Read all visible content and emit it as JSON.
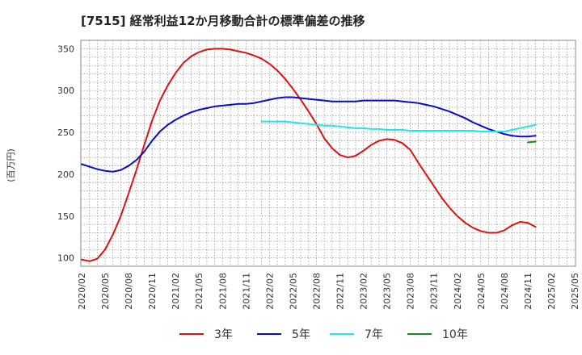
{
  "chart_data": {
    "type": "line",
    "title": "[7515]  経常利益12か月移動合計の標準偏差の推移",
    "ylabel": "(百万円)",
    "xlabel": "",
    "ylim": [
      90,
      360
    ],
    "yticks": [
      100,
      150,
      200,
      250,
      300,
      350
    ],
    "x_tick_labels": [
      "2020/02",
      "2020/05",
      "2020/08",
      "2020/11",
      "2021/02",
      "2021/05",
      "2021/08",
      "2021/11",
      "2022/02",
      "2022/05",
      "2022/08",
      "2022/11",
      "2023/02",
      "2023/05",
      "2023/08",
      "2023/11",
      "2024/02",
      "2024/05",
      "2024/08",
      "2024/11",
      "2025/02",
      "2025/05"
    ],
    "grid": true,
    "legend_position": "bottom",
    "series": [
      {
        "name": "3年",
        "color": "#dd1111",
        "points": [
          [
            "2020/02",
            98
          ],
          [
            "2020/03",
            96
          ],
          [
            "2020/04",
            99
          ],
          [
            "2020/05",
            110
          ],
          [
            "2020/06",
            128
          ],
          [
            "2020/07",
            150
          ],
          [
            "2020/08",
            177
          ],
          [
            "2020/09",
            205
          ],
          [
            "2020/10",
            235
          ],
          [
            "2020/11",
            264
          ],
          [
            "2020/12",
            288
          ],
          [
            "2021/01",
            306
          ],
          [
            "2021/02",
            321
          ],
          [
            "2021/03",
            333
          ],
          [
            "2021/04",
            341
          ],
          [
            "2021/05",
            346
          ],
          [
            "2021/06",
            349
          ],
          [
            "2021/07",
            350
          ],
          [
            "2021/08",
            350
          ],
          [
            "2021/09",
            349
          ],
          [
            "2021/10",
            347
          ],
          [
            "2021/11",
            345
          ],
          [
            "2021/12",
            342
          ],
          [
            "2022/01",
            338
          ],
          [
            "2022/02",
            332
          ],
          [
            "2022/03",
            324
          ],
          [
            "2022/04",
            314
          ],
          [
            "2022/05",
            302
          ],
          [
            "2022/06",
            289
          ],
          [
            "2022/07",
            275
          ],
          [
            "2022/08",
            260
          ],
          [
            "2022/09",
            243
          ],
          [
            "2022/10",
            231
          ],
          [
            "2022/11",
            223
          ],
          [
            "2022/12",
            220
          ],
          [
            "2023/01",
            222
          ],
          [
            "2023/02",
            228
          ],
          [
            "2023/03",
            235
          ],
          [
            "2023/04",
            240
          ],
          [
            "2023/05",
            242
          ],
          [
            "2023/06",
            241
          ],
          [
            "2023/07",
            237
          ],
          [
            "2023/08",
            229
          ],
          [
            "2023/09",
            214
          ],
          [
            "2023/10",
            200
          ],
          [
            "2023/11",
            186
          ],
          [
            "2023/12",
            172
          ],
          [
            "2024/01",
            160
          ],
          [
            "2024/02",
            150
          ],
          [
            "2024/03",
            142
          ],
          [
            "2024/04",
            136
          ],
          [
            "2024/05",
            132
          ],
          [
            "2024/06",
            130
          ],
          [
            "2024/07",
            130
          ],
          [
            "2024/08",
            133
          ],
          [
            "2024/09",
            139
          ],
          [
            "2024/10",
            143
          ],
          [
            "2024/11",
            142
          ],
          [
            "2024/12",
            137
          ]
        ]
      },
      {
        "name": "5年",
        "color": "#0a0acc",
        "points": [
          [
            "2020/02",
            212
          ],
          [
            "2020/03",
            209
          ],
          [
            "2020/04",
            206
          ],
          [
            "2020/05",
            204
          ],
          [
            "2020/06",
            203
          ],
          [
            "2020/07",
            205
          ],
          [
            "2020/08",
            210
          ],
          [
            "2020/09",
            217
          ],
          [
            "2020/10",
            227
          ],
          [
            "2020/11",
            240
          ],
          [
            "2020/12",
            251
          ],
          [
            "2021/01",
            259
          ],
          [
            "2021/02",
            265
          ],
          [
            "2021/03",
            270
          ],
          [
            "2021/04",
            274
          ],
          [
            "2021/05",
            277
          ],
          [
            "2021/06",
            279
          ],
          [
            "2021/07",
            281
          ],
          [
            "2021/08",
            282
          ],
          [
            "2021/09",
            283
          ],
          [
            "2021/10",
            284
          ],
          [
            "2021/11",
            284
          ],
          [
            "2021/12",
            285
          ],
          [
            "2022/01",
            287
          ],
          [
            "2022/02",
            289
          ],
          [
            "2022/03",
            291
          ],
          [
            "2022/04",
            292
          ],
          [
            "2022/05",
            292
          ],
          [
            "2022/06",
            291
          ],
          [
            "2022/07",
            290
          ],
          [
            "2022/08",
            289
          ],
          [
            "2022/09",
            288
          ],
          [
            "2022/10",
            287
          ],
          [
            "2022/11",
            287
          ],
          [
            "2022/12",
            287
          ],
          [
            "2023/01",
            287
          ],
          [
            "2023/02",
            288
          ],
          [
            "2023/03",
            288
          ],
          [
            "2023/04",
            288
          ],
          [
            "2023/05",
            288
          ],
          [
            "2023/06",
            288
          ],
          [
            "2023/07",
            287
          ],
          [
            "2023/08",
            286
          ],
          [
            "2023/09",
            285
          ],
          [
            "2023/10",
            283
          ],
          [
            "2023/11",
            281
          ],
          [
            "2023/12",
            278
          ],
          [
            "2024/01",
            275
          ],
          [
            "2024/02",
            271
          ],
          [
            "2024/03",
            267
          ],
          [
            "2024/04",
            262
          ],
          [
            "2024/05",
            258
          ],
          [
            "2024/06",
            254
          ],
          [
            "2024/07",
            251
          ],
          [
            "2024/08",
            248
          ],
          [
            "2024/09",
            246
          ],
          [
            "2024/10",
            245
          ],
          [
            "2024/11",
            245
          ],
          [
            "2024/12",
            246
          ]
        ]
      },
      {
        "name": "7年",
        "color": "#22e6e6",
        "points": [
          [
            "2022/01",
            263
          ],
          [
            "2022/02",
            263
          ],
          [
            "2022/03",
            263
          ],
          [
            "2022/04",
            263
          ],
          [
            "2022/05",
            262
          ],
          [
            "2022/06",
            261
          ],
          [
            "2022/07",
            260
          ],
          [
            "2022/08",
            259
          ],
          [
            "2022/09",
            258
          ],
          [
            "2022/10",
            258
          ],
          [
            "2022/11",
            257
          ],
          [
            "2022/12",
            256
          ],
          [
            "2023/01",
            255
          ],
          [
            "2023/02",
            255
          ],
          [
            "2023/03",
            254
          ],
          [
            "2023/04",
            254
          ],
          [
            "2023/05",
            253
          ],
          [
            "2023/06",
            253
          ],
          [
            "2023/07",
            253
          ],
          [
            "2023/08",
            252
          ],
          [
            "2023/09",
            252
          ],
          [
            "2023/10",
            252
          ],
          [
            "2023/11",
            252
          ],
          [
            "2023/12",
            252
          ],
          [
            "2024/01",
            252
          ],
          [
            "2024/02",
            252
          ],
          [
            "2024/03",
            252
          ],
          [
            "2024/04",
            252
          ],
          [
            "2024/05",
            251
          ],
          [
            "2024/06",
            251
          ],
          [
            "2024/07",
            251
          ],
          [
            "2024/08",
            251
          ],
          [
            "2024/09",
            253
          ],
          [
            "2024/10",
            255
          ],
          [
            "2024/11",
            257
          ],
          [
            "2024/12",
            259
          ]
        ]
      },
      {
        "name": "10年",
        "color": "#228822",
        "points": [
          [
            "2024/11",
            238
          ],
          [
            "2024/12",
            239
          ]
        ]
      }
    ]
  }
}
